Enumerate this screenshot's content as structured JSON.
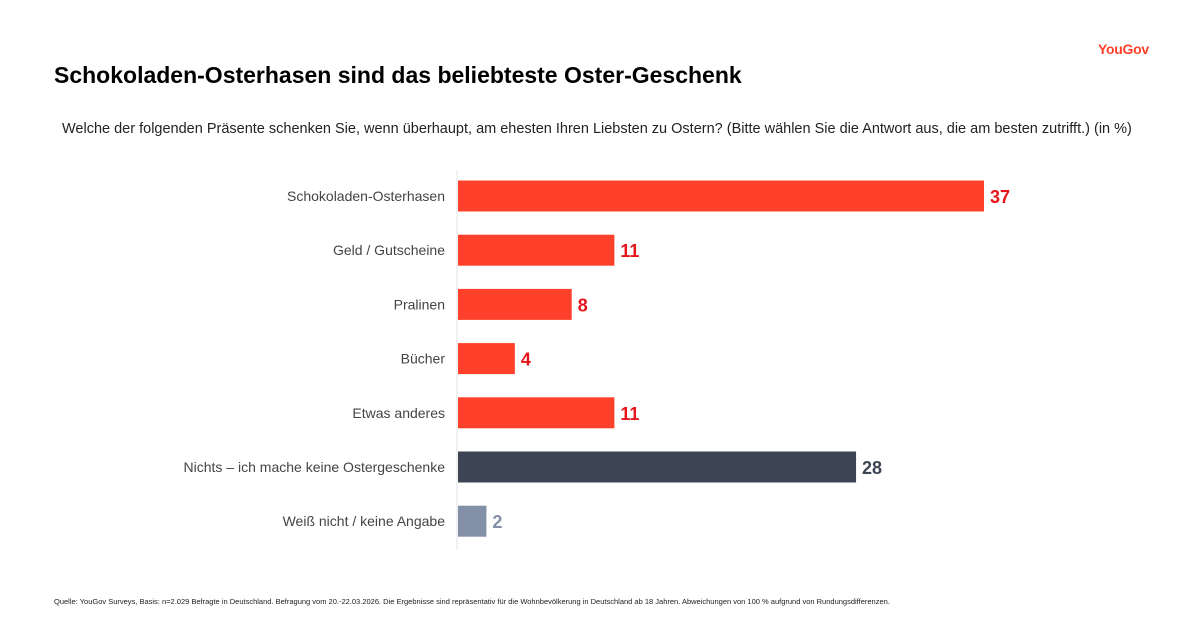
{
  "logo": "YouGov",
  "chart_data": {
    "type": "bar",
    "orientation": "horizontal",
    "title": "Schokoladen-Osterhasen sind das beliebteste Oster-Geschenk",
    "subtitle": "Welche der folgenden Präsente schenken Sie, wenn überhaupt, am ehesten Ihren Liebsten zu Ostern? (Bitte wählen Sie die Antwort aus, die am besten zutrifft.) (in %)",
    "categories": [
      "Schokoladen-Osterhasen",
      "Geld / Gutscheine",
      "Pralinen",
      "Bücher",
      "Etwas anderes",
      "Nichts – ich mache keine Ostergeschenke",
      "Weiß nicht / keine Angabe"
    ],
    "values": [
      37,
      11,
      8,
      4,
      11,
      28,
      2
    ],
    "bar_colors": [
      "#ff412c",
      "#ff412c",
      "#ff412c",
      "#ff412c",
      "#ff412c",
      "#3d4554",
      "#8390a8"
    ],
    "label_colors": [
      "#e8141c",
      "#e8141c",
      "#e8141c",
      "#e8141c",
      "#e8141c",
      "#3d4554",
      "#8390a8"
    ],
    "xlim": [
      0,
      37
    ],
    "unit": "%"
  },
  "footer": "Quelle: YouGov Surveys, Basis: n=2.029 Befragte in Deutschland. Befragung vom 20.-22.03.2026. Die Ergebnisse sind repräsentativ für die Wohnbevölkerung in Deutschland ab 18 Jahren. Abweichungen von 100 % aufgrund von Rundungsdifferenzen."
}
